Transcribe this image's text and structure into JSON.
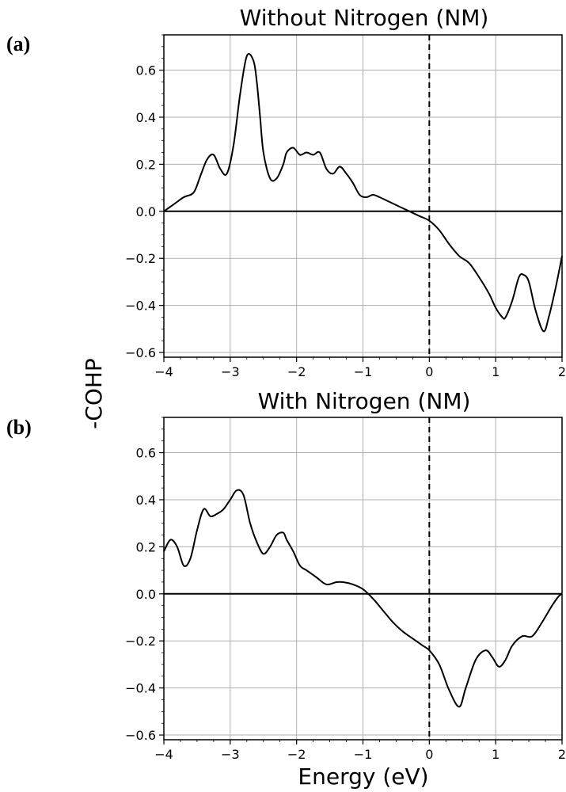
{
  "figure": {
    "ylabel": "-COHP",
    "xlabel": "Energy (eV)"
  },
  "panels": [
    {
      "label": "(a)",
      "title": "Without Nitrogen (NM)"
    },
    {
      "label": "(b)",
      "title": "With Nitrogen (NM)"
    }
  ],
  "chart_data": [
    {
      "type": "line",
      "title": "Without Nitrogen (NM)",
      "xlabel": "Energy (eV)",
      "ylabel": "-COHP",
      "xlim": [
        -4,
        2
      ],
      "ylim": [
        -0.62,
        0.75
      ],
      "xticks": [
        -4,
        -3,
        -2,
        -1,
        0,
        1,
        2
      ],
      "yticks": [
        -0.6,
        -0.4,
        -0.2,
        0.0,
        0.2,
        0.4,
        0.6
      ],
      "grid": true,
      "reference_lines": {
        "horizontal_y": 0,
        "vertical_dashed_x": 0
      },
      "color": "#000000",
      "series": [
        {
          "x": [
            -4.0,
            -3.85,
            -3.7,
            -3.55,
            -3.45,
            -3.35,
            -3.25,
            -3.15,
            -3.05,
            -2.95,
            -2.85,
            -2.75,
            -2.65,
            -2.6,
            -2.55,
            -2.5,
            -2.4,
            -2.3,
            -2.2,
            -2.15,
            -2.05,
            -1.95,
            -1.85,
            -1.75,
            -1.65,
            -1.55,
            -1.45,
            -1.35,
            -1.25,
            -1.15,
            -1.05,
            -0.95,
            -0.85,
            -0.75,
            -0.6,
            -0.45,
            -0.3,
            -0.15,
            0.0,
            0.15,
            0.3,
            0.45,
            0.6,
            0.75,
            0.9,
            1.0,
            1.1,
            1.15,
            1.25,
            1.35,
            1.42,
            1.5,
            1.6,
            1.72,
            1.8,
            1.9,
            2.0
          ],
          "y": [
            0.0,
            0.03,
            0.06,
            0.08,
            0.15,
            0.22,
            0.24,
            0.18,
            0.16,
            0.28,
            0.5,
            0.66,
            0.64,
            0.55,
            0.4,
            0.25,
            0.14,
            0.14,
            0.2,
            0.25,
            0.27,
            0.24,
            0.25,
            0.24,
            0.25,
            0.18,
            0.16,
            0.19,
            0.16,
            0.12,
            0.07,
            0.06,
            0.07,
            0.06,
            0.04,
            0.02,
            0.0,
            -0.02,
            -0.04,
            -0.08,
            -0.14,
            -0.19,
            -0.22,
            -0.28,
            -0.35,
            -0.41,
            -0.45,
            -0.45,
            -0.38,
            -0.28,
            -0.27,
            -0.3,
            -0.42,
            -0.51,
            -0.45,
            -0.33,
            -0.19
          ]
        }
      ]
    },
    {
      "type": "line",
      "title": "With Nitrogen (NM)",
      "xlabel": "Energy (eV)",
      "ylabel": "-COHP",
      "xlim": [
        -4,
        2
      ],
      "ylim": [
        -0.62,
        0.75
      ],
      "xticks": [
        -4,
        -3,
        -2,
        -1,
        0,
        1,
        2
      ],
      "yticks": [
        -0.6,
        -0.4,
        -0.2,
        0.0,
        0.2,
        0.4,
        0.6
      ],
      "grid": true,
      "reference_lines": {
        "horizontal_y": 0,
        "vertical_dashed_x": 0
      },
      "color": "#000000",
      "series": [
        {
          "x": [
            -4.0,
            -3.9,
            -3.8,
            -3.7,
            -3.6,
            -3.5,
            -3.4,
            -3.3,
            -3.2,
            -3.1,
            -3.0,
            -2.9,
            -2.8,
            -2.7,
            -2.6,
            -2.5,
            -2.4,
            -2.3,
            -2.2,
            -2.15,
            -2.05,
            -1.95,
            -1.85,
            -1.7,
            -1.55,
            -1.4,
            -1.3,
            -1.15,
            -1.0,
            -0.85,
            -0.7,
            -0.55,
            -0.4,
            -0.25,
            -0.1,
            0.0,
            0.15,
            0.3,
            0.45,
            0.55,
            0.7,
            0.85,
            0.95,
            1.05,
            1.15,
            1.25,
            1.4,
            1.55,
            1.7,
            1.85,
            1.95,
            2.0
          ],
          "y": [
            0.18,
            0.23,
            0.2,
            0.12,
            0.15,
            0.27,
            0.36,
            0.33,
            0.34,
            0.36,
            0.4,
            0.44,
            0.42,
            0.3,
            0.22,
            0.17,
            0.2,
            0.25,
            0.26,
            0.23,
            0.18,
            0.12,
            0.1,
            0.07,
            0.04,
            0.05,
            0.05,
            0.04,
            0.02,
            -0.02,
            -0.07,
            -0.12,
            -0.16,
            -0.19,
            -0.22,
            -0.24,
            -0.3,
            -0.41,
            -0.48,
            -0.4,
            -0.28,
            -0.24,
            -0.27,
            -0.31,
            -0.28,
            -0.22,
            -0.18,
            -0.18,
            -0.12,
            -0.05,
            -0.01,
            0.0
          ]
        }
      ]
    }
  ]
}
